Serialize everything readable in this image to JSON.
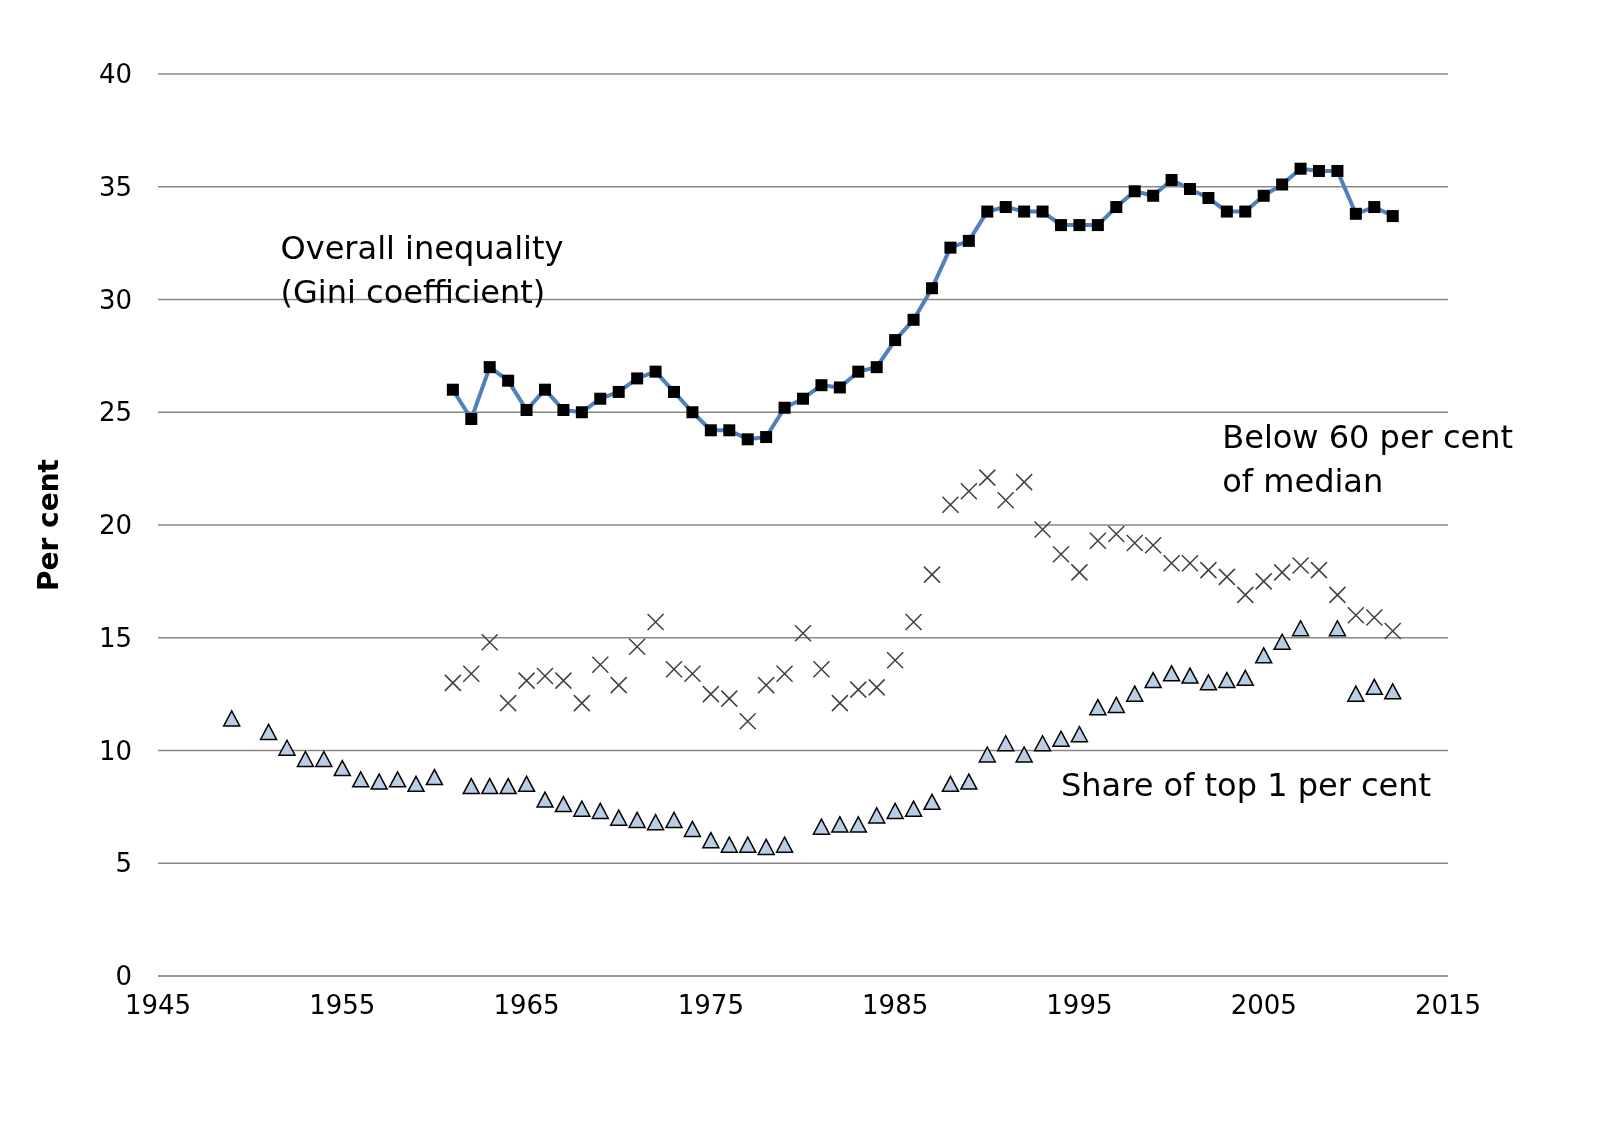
{
  "chart_data": {
    "type": "line",
    "ylabel": "Per cent",
    "xlim": [
      1945,
      2015
    ],
    "xticks": [
      1945,
      1955,
      1965,
      1975,
      1985,
      1995,
      2005,
      2015
    ],
    "ylim": [
      0,
      40
    ],
    "yticks": [
      0,
      5,
      10,
      15,
      20,
      25,
      30,
      35,
      40
    ],
    "grid": "y",
    "legend": false,
    "series": [
      {
        "name": "Overall inequality (Gini coefficient)",
        "marker": "square",
        "line_style": "solid",
        "color": "#4f81bd",
        "x": [
          1961,
          1962,
          1963,
          1964,
          1965,
          1966,
          1967,
          1968,
          1969,
          1970,
          1971,
          1972,
          1973,
          1974,
          1975,
          1976,
          1977,
          1978,
          1979,
          1980,
          1981,
          1982,
          1983,
          1984,
          1985,
          1986,
          1987,
          1988,
          1989,
          1990,
          1991,
          1992,
          1993,
          1994,
          1995,
          1996,
          1997,
          1998,
          1999,
          2000,
          2001,
          2002,
          2003,
          2004,
          2005,
          2006,
          2007,
          2008,
          2009,
          2010,
          2011,
          2012
        ],
        "values": [
          26.0,
          24.7,
          27.0,
          26.4,
          25.1,
          26.0,
          25.1,
          25.0,
          25.6,
          25.9,
          26.5,
          26.8,
          25.9,
          25.0,
          24.2,
          24.2,
          23.8,
          23.9,
          25.2,
          25.6,
          26.2,
          26.1,
          26.8,
          27.0,
          28.2,
          29.1,
          30.5,
          32.3,
          32.6,
          33.9,
          34.1,
          33.9,
          33.9,
          33.3,
          33.3,
          33.3,
          34.1,
          34.8,
          34.6,
          35.3,
          34.9,
          34.5,
          33.9,
          33.9,
          34.6,
          35.1,
          35.8,
          35.7,
          35.7,
          33.8,
          34.1,
          33.7
        ]
      },
      {
        "name": "Below 60 per cent of median",
        "type": "scatter",
        "marker": "cross",
        "color": "#404040",
        "x": [
          1961,
          1962,
          1963,
          1964,
          1965,
          1966,
          1967,
          1968,
          1969,
          1970,
          1971,
          1972,
          1973,
          1974,
          1975,
          1976,
          1977,
          1978,
          1979,
          1980,
          1981,
          1982,
          1983,
          1984,
          1985,
          1986,
          1987,
          1988,
          1989,
          1990,
          1991,
          1992,
          1993,
          1994,
          1995,
          1996,
          1997,
          1998,
          1999,
          2000,
          2001,
          2002,
          2003,
          2004,
          2005,
          2006,
          2007,
          2008,
          2009,
          2010,
          2011,
          2012
        ],
        "values": [
          13.0,
          13.4,
          14.8,
          12.1,
          13.1,
          13.3,
          13.1,
          12.1,
          13.8,
          12.9,
          14.6,
          15.7,
          13.6,
          13.4,
          12.5,
          12.3,
          11.3,
          12.9,
          13.4,
          15.2,
          13.6,
          12.1,
          12.7,
          12.8,
          14.0,
          15.7,
          17.8,
          20.9,
          21.5,
          22.1,
          21.1,
          21.9,
          19.8,
          18.7,
          17.9,
          19.3,
          19.6,
          19.2,
          19.1,
          18.3,
          18.3,
          18.0,
          17.7,
          16.9,
          17.5,
          17.9,
          18.2,
          18.0,
          16.9,
          16.0,
          15.9,
          15.3
        ]
      },
      {
        "name": "Share of top 1 per cent",
        "type": "scatter",
        "marker": "triangle",
        "color": "#b9cde5",
        "x": [
          1949,
          1951,
          1952,
          1953,
          1954,
          1955,
          1956,
          1957,
          1958,
          1959,
          1960,
          1962,
          1963,
          1964,
          1965,
          1966,
          1967,
          1968,
          1969,
          1970,
          1971,
          1972,
          1973,
          1974,
          1975,
          1976,
          1977,
          1978,
          1979,
          1981,
          1982,
          1983,
          1984,
          1985,
          1986,
          1987,
          1988,
          1989,
          1990,
          1991,
          1992,
          1993,
          1994,
          1995,
          1996,
          1997,
          1998,
          1999,
          2000,
          2001,
          2002,
          2003,
          2004,
          2005,
          2006,
          2007,
          2009,
          2010,
          2011,
          2012
        ],
        "values": [
          11.4,
          10.8,
          10.1,
          9.6,
          9.6,
          9.2,
          8.7,
          8.6,
          8.7,
          8.5,
          8.8,
          8.4,
          8.4,
          8.4,
          8.5,
          7.8,
          7.6,
          7.4,
          7.3,
          7.0,
          6.9,
          6.8,
          6.9,
          6.5,
          6.0,
          5.8,
          5.8,
          5.7,
          5.8,
          6.6,
          6.7,
          6.7,
          7.1,
          7.3,
          7.4,
          7.7,
          8.5,
          8.6,
          9.8,
          10.3,
          9.8,
          10.3,
          10.5,
          10.7,
          11.9,
          12.0,
          12.5,
          13.1,
          13.4,
          13.3,
          13.0,
          13.1,
          13.2,
          14.2,
          14.8,
          15.4,
          15.4,
          12.5,
          12.8,
          12.6
        ]
      }
    ]
  }
}
